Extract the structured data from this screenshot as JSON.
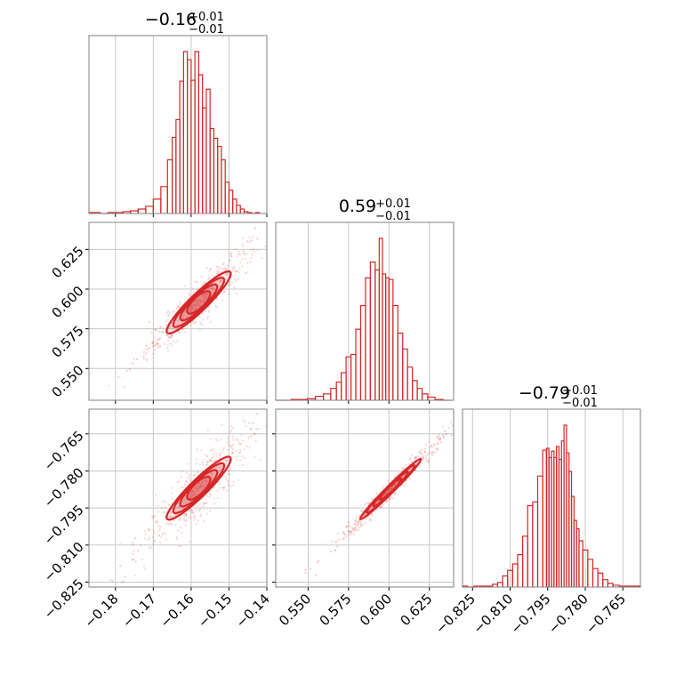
{
  "chart_data": [
    {
      "type": "histogram",
      "panel": "p1-marginal",
      "title": {
        "median": "−0.16",
        "plus": "+0.01",
        "minus": "−0.01"
      },
      "xlim": [
        -0.187,
        -0.14
      ],
      "xticks": [
        -0.18,
        -0.17,
        -0.16,
        -0.15,
        -0.14
      ],
      "xtick_labels": [
        "−0.18",
        "−0.17",
        "−0.16",
        "−0.15",
        "−0.14"
      ],
      "bin_centers": [
        -0.187,
        -0.185,
        -0.183,
        -0.181,
        -0.179,
        -0.177,
        -0.175,
        -0.173,
        -0.171,
        -0.169,
        -0.167,
        -0.1655,
        -0.1645,
        -0.1635,
        -0.1625,
        -0.1615,
        -0.1605,
        -0.1595,
        -0.1585,
        -0.1575,
        -0.1565,
        -0.1555,
        -0.1545,
        -0.1535,
        -0.1525,
        -0.1515,
        -0.1505,
        -0.1495,
        -0.1485,
        -0.1475,
        -0.1465,
        -0.1455,
        -0.1445,
        -0.1435,
        -0.1425
      ],
      "counts": [
        1,
        1,
        0,
        1,
        1,
        2,
        3,
        5,
        8,
        16,
        30,
        60,
        85,
        105,
        148,
        181,
        172,
        149,
        181,
        155,
        118,
        139,
        95,
        84,
        75,
        60,
        35,
        26,
        16,
        9,
        5,
        2,
        1,
        0,
        1
      ]
    },
    {
      "type": "histogram",
      "panel": "p2-marginal",
      "title": {
        "median": "0.59",
        "plus": "+0.01",
        "minus": "−0.01"
      },
      "xlim": [
        0.53,
        0.64
      ],
      "xticks": [
        0.55,
        0.575,
        0.6,
        0.625
      ],
      "xtick_labels": [
        "0.550",
        "0.575",
        "0.600",
        "0.625"
      ],
      "bin_centers": [
        0.532,
        0.537,
        0.542,
        0.547,
        0.552,
        0.557,
        0.562,
        0.566,
        0.569,
        0.572,
        0.575,
        0.578,
        0.581,
        0.584,
        0.587,
        0.59,
        0.593,
        0.595,
        0.597,
        0.599,
        0.601,
        0.604,
        0.607,
        0.61,
        0.613,
        0.616,
        0.619,
        0.622,
        0.626,
        0.631,
        0.636
      ],
      "counts": [
        0,
        0,
        1,
        1,
        2,
        5,
        8,
        15,
        23,
        35,
        55,
        58,
        90,
        120,
        155,
        175,
        165,
        205,
        160,
        155,
        153,
        120,
        85,
        65,
        42,
        25,
        15,
        8,
        4,
        1,
        0
      ]
    },
    {
      "type": "histogram",
      "panel": "p3-marginal",
      "title": {
        "median": "−0.79",
        "plus": "+0.01",
        "minus": "−0.01"
      },
      "xlim": [
        -0.829,
        -0.758
      ],
      "xticks": [
        -0.825,
        -0.81,
        -0.795,
        -0.78,
        -0.765
      ],
      "xtick_labels": [
        "−0.825",
        "−0.810",
        "−0.795",
        "−0.780",
        "−0.765"
      ],
      "bin_centers": [
        -0.828,
        -0.826,
        -0.823,
        -0.82,
        -0.818,
        -0.816,
        -0.814,
        -0.812,
        -0.81,
        -0.808,
        -0.806,
        -0.804,
        -0.802,
        -0.8,
        -0.798,
        -0.796,
        -0.795,
        -0.794,
        -0.793,
        -0.792,
        -0.791,
        -0.79,
        -0.789,
        -0.788,
        -0.787,
        -0.786,
        -0.785,
        -0.784,
        -0.783,
        -0.782,
        -0.78,
        -0.778,
        -0.776,
        -0.774,
        -0.772,
        -0.77,
        -0.768,
        -0.765,
        -0.762,
        -0.759
      ],
      "counts": [
        1,
        0,
        1,
        1,
        1,
        3,
        5,
        12,
        18,
        25,
        35,
        55,
        88,
        92,
        120,
        148,
        150,
        140,
        147,
        140,
        152,
        138,
        158,
        175,
        145,
        125,
        98,
        72,
        63,
        50,
        40,
        30,
        20,
        15,
        8,
        4,
        2,
        1,
        1,
        1
      ]
    },
    {
      "type": "scatter",
      "panel": "p2-vs-p1",
      "x_param": "p1",
      "y_param": "p2",
      "xlim": [
        -0.187,
        -0.14
      ],
      "ylim": [
        0.53,
        0.642
      ],
      "yticks": [
        0.55,
        0.575,
        0.6,
        0.625
      ],
      "ytick_labels": [
        "0.550",
        "0.575",
        "0.600",
        "0.625"
      ],
      "slope": 2.3,
      "intercept": 0.955,
      "core_range": [
        -0.166,
        -0.15
      ],
      "tails": [
        [
          -0.182,
          0.538
        ],
        [
          -0.142,
          0.636
        ]
      ]
    },
    {
      "type": "scatter",
      "panel": "p3-vs-p1",
      "x_param": "p1",
      "y_param": "p3",
      "xlim": [
        -0.187,
        -0.14
      ],
      "ylim": [
        -0.827,
        -0.755
      ],
      "yticks": [
        -0.825,
        -0.81,
        -0.795,
        -0.78,
        -0.765
      ],
      "ytick_labels": [
        "−0.825",
        "−0.810",
        "−0.795",
        "−0.780",
        "−0.765"
      ],
      "slope": 1.5,
      "intercept": -0.55,
      "core_range": [
        -0.166,
        -0.15
      ],
      "tails": [
        [
          -0.182,
          -0.823
        ],
        [
          -0.142,
          -0.76
        ]
      ]
    },
    {
      "type": "scatter",
      "panel": "p3-vs-p2",
      "x_param": "p2",
      "y_param": "p3",
      "xlim": [
        0.53,
        0.64
      ],
      "ylim": [
        -0.827,
        -0.755
      ],
      "slope": 0.65,
      "intercept": -1.178,
      "core_range": [
        0.583,
        0.619
      ],
      "tails": [
        [
          0.548,
          -0.822
        ],
        [
          0.636,
          -0.765
        ]
      ]
    }
  ]
}
